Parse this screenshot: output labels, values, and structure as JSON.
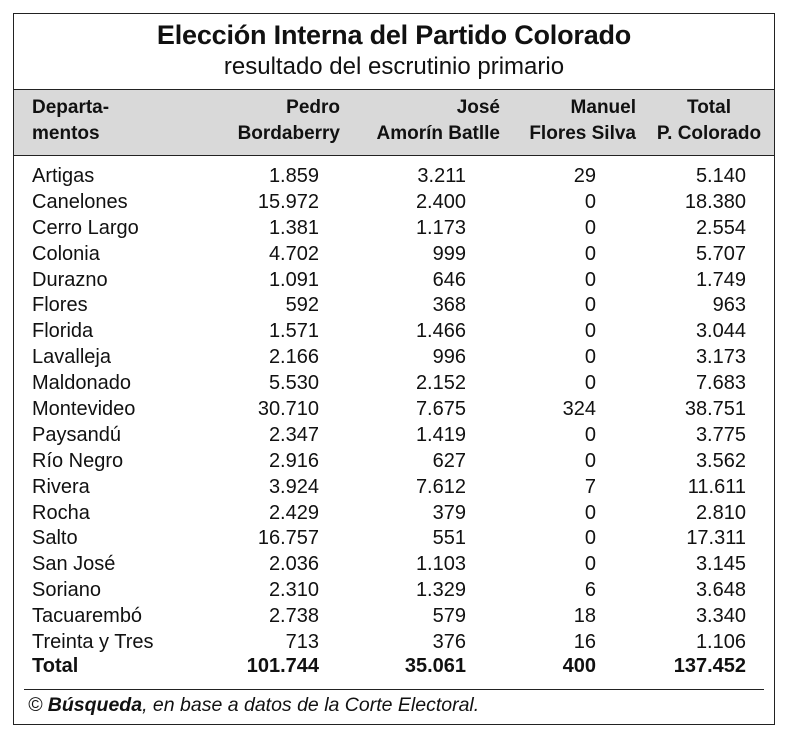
{
  "title": "Elección Interna del Partido Colorado",
  "subtitle": "resultado del escrutinio primario",
  "headers": {
    "departamentos": "Departa-\nmentos",
    "col1": "Pedro\nBordaberry",
    "col2": "José\nAmorín Batlle",
    "col3": "Manuel\nFlores Silva",
    "col4": "Total\nP. Colorado"
  },
  "rows": [
    {
      "dep": "Artigas",
      "c1": "1.859",
      "c2": "3.211",
      "c3": "29",
      "c4": "5.140"
    },
    {
      "dep": "Canelones",
      "c1": "15.972",
      "c2": "2.400",
      "c3": "0",
      "c4": "18.380"
    },
    {
      "dep": "Cerro Largo",
      "c1": "1.381",
      "c2": "1.173",
      "c3": "0",
      "c4": "2.554"
    },
    {
      "dep": "Colonia",
      "c1": "4.702",
      "c2": "999",
      "c3": "0",
      "c4": "5.707"
    },
    {
      "dep": "Durazno",
      "c1": "1.091",
      "c2": "646",
      "c3": "0",
      "c4": "1.749"
    },
    {
      "dep": "Flores",
      "c1": "592",
      "c2": "368",
      "c3": "0",
      "c4": "963"
    },
    {
      "dep": "Florida",
      "c1": "1.571",
      "c2": "1.466",
      "c3": "0",
      "c4": "3.044"
    },
    {
      "dep": "Lavalleja",
      "c1": "2.166",
      "c2": "996",
      "c3": "0",
      "c4": "3.173"
    },
    {
      "dep": "Maldonado",
      "c1": "5.530",
      "c2": "2.152",
      "c3": "0",
      "c4": "7.683"
    },
    {
      "dep": "Montevideo",
      "c1": "30.710",
      "c2": "7.675",
      "c3": "324",
      "c4": "38.751"
    },
    {
      "dep": "Paysandú",
      "c1": "2.347",
      "c2": "1.419",
      "c3": "0",
      "c4": "3.775"
    },
    {
      "dep": "Río Negro",
      "c1": "2.916",
      "c2": "627",
      "c3": "0",
      "c4": "3.562"
    },
    {
      "dep": "Rivera",
      "c1": "3.924",
      "c2": "7.612",
      "c3": "7",
      "c4": "11.611"
    },
    {
      "dep": "Rocha",
      "c1": "2.429",
      "c2": "379",
      "c3": "0",
      "c4": "2.810"
    },
    {
      "dep": "Salto",
      "c1": "16.757",
      "c2": "551",
      "c3": "0",
      "c4": "17.311"
    },
    {
      "dep": "San José",
      "c1": "2.036",
      "c2": "1.103",
      "c3": "0",
      "c4": "3.145"
    },
    {
      "dep": "Soriano",
      "c1": "2.310",
      "c2": "1.329",
      "c3": "6",
      "c4": "3.648"
    },
    {
      "dep": "Tacuarembó",
      "c1": "2.738",
      "c2": "579",
      "c3": "18",
      "c4": "3.340"
    },
    {
      "dep": "Treinta y Tres",
      "c1": "713",
      "c2": "376",
      "c3": "16",
      "c4": "1.106"
    }
  ],
  "total": {
    "label": "Total",
    "c1": "101.744",
    "c2": "35.061",
    "c3": "400",
    "c4": "137.452"
  },
  "footer": {
    "prefix": "© ",
    "source": "Búsqueda",
    "rest": ", en base a datos de la Corte Electoral."
  }
}
